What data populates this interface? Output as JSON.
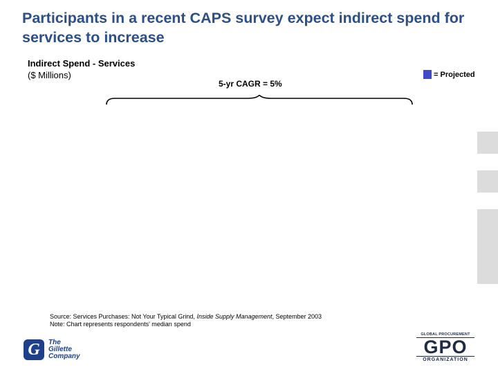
{
  "slide": {
    "title": "Participants in a recent CAPS survey expect indirect spend for services to increase"
  },
  "chart_data": {
    "type": "bar",
    "title": "Indirect Spend - Services",
    "ylabel": "($ Millions)",
    "annotation": "5-yr CAGR = 5%",
    "legend": {
      "label": "= Projected",
      "color": "#3f49c9",
      "position": "top-right"
    },
    "categories": [],
    "series": []
  },
  "footer": {
    "source_prefix": "Source: Services Purchases: Not Your Typical Grind, ",
    "source_italic": "Inside Supply Management",
    "source_suffix": ", September 2003",
    "note": "Note: Chart represents respondents' median spend"
  },
  "logos": {
    "gillette_mark": "G",
    "gillette_line1": "The",
    "gillette_line2": "Gillette",
    "gillette_line3": "Company",
    "gpo_top": "GLOBAL PROCUREMENT",
    "gpo_main": "GPO",
    "gpo_bottom": "ORGANIZATION"
  }
}
